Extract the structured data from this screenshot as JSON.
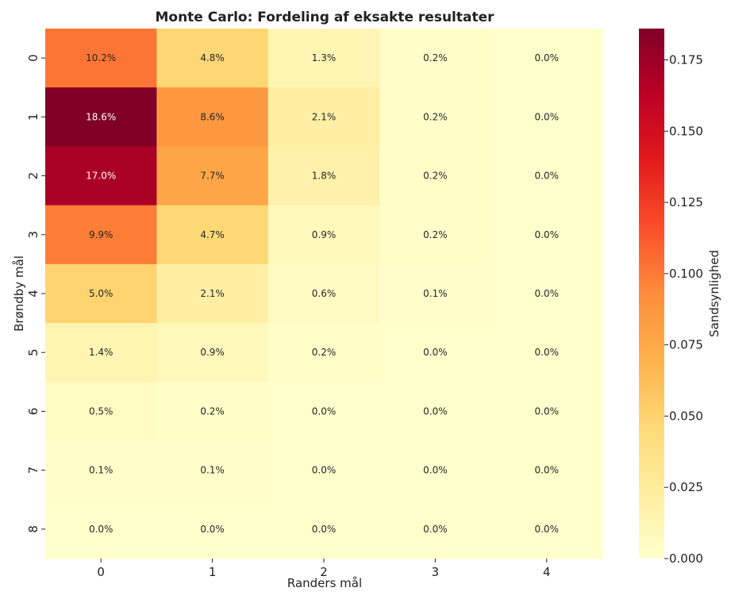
{
  "chart_data": {
    "type": "heatmap",
    "title": "Monte Carlo: Fordeling af eksakte resultater",
    "xlabel": "Randers mål",
    "ylabel": "Brøndby mål",
    "x_categories": [
      "0",
      "1",
      "2",
      "3",
      "4"
    ],
    "y_categories": [
      "0",
      "1",
      "2",
      "3",
      "4",
      "5",
      "6",
      "7",
      "8"
    ],
    "values": [
      [
        0.102,
        0.048,
        0.013,
        0.002,
        0.0
      ],
      [
        0.186,
        0.086,
        0.021,
        0.002,
        0.0
      ],
      [
        0.17,
        0.077,
        0.018,
        0.002,
        0.0
      ],
      [
        0.099,
        0.047,
        0.009,
        0.002,
        0.0
      ],
      [
        0.05,
        0.021,
        0.006,
        0.001,
        0.0
      ],
      [
        0.014,
        0.009,
        0.002,
        0.0,
        0.0
      ],
      [
        0.005,
        0.002,
        0.0,
        0.0,
        0.0
      ],
      [
        0.001,
        0.001,
        0.0,
        0.0,
        0.0
      ],
      [
        0.0,
        0.0,
        0.0,
        0.0,
        0.0
      ]
    ],
    "annotations": [
      [
        "10.2%",
        "4.8%",
        "1.3%",
        "0.2%",
        "0.0%"
      ],
      [
        "18.6%",
        "8.6%",
        "2.1%",
        "0.2%",
        "0.0%"
      ],
      [
        "17.0%",
        "7.7%",
        "1.8%",
        "0.2%",
        "0.0%"
      ],
      [
        "9.9%",
        "4.7%",
        "0.9%",
        "0.2%",
        "0.0%"
      ],
      [
        "5.0%",
        "2.1%",
        "0.6%",
        "0.1%",
        "0.0%"
      ],
      [
        "1.4%",
        "0.9%",
        "0.2%",
        "0.0%",
        "0.0%"
      ],
      [
        "0.5%",
        "0.2%",
        "0.0%",
        "0.0%",
        "0.0%"
      ],
      [
        "0.1%",
        "0.1%",
        "0.0%",
        "0.0%",
        "0.0%"
      ],
      [
        "0.0%",
        "0.0%",
        "0.0%",
        "0.0%",
        "0.0%"
      ]
    ],
    "colorbar": {
      "label": "Sandsynlighed",
      "range": [
        0,
        0.186
      ],
      "ticks": [
        "0.000",
        "0.025",
        "0.050",
        "0.075",
        "0.100",
        "0.125",
        "0.150",
        "0.175"
      ],
      "colormap": "YlOrRd",
      "colormap_stops": [
        "#ffffcc",
        "#ffeda0",
        "#fed976",
        "#feb24c",
        "#fd8d3c",
        "#fc4e2a",
        "#e31a1c",
        "#bd0026",
        "#800026"
      ]
    },
    "grid": false
  }
}
